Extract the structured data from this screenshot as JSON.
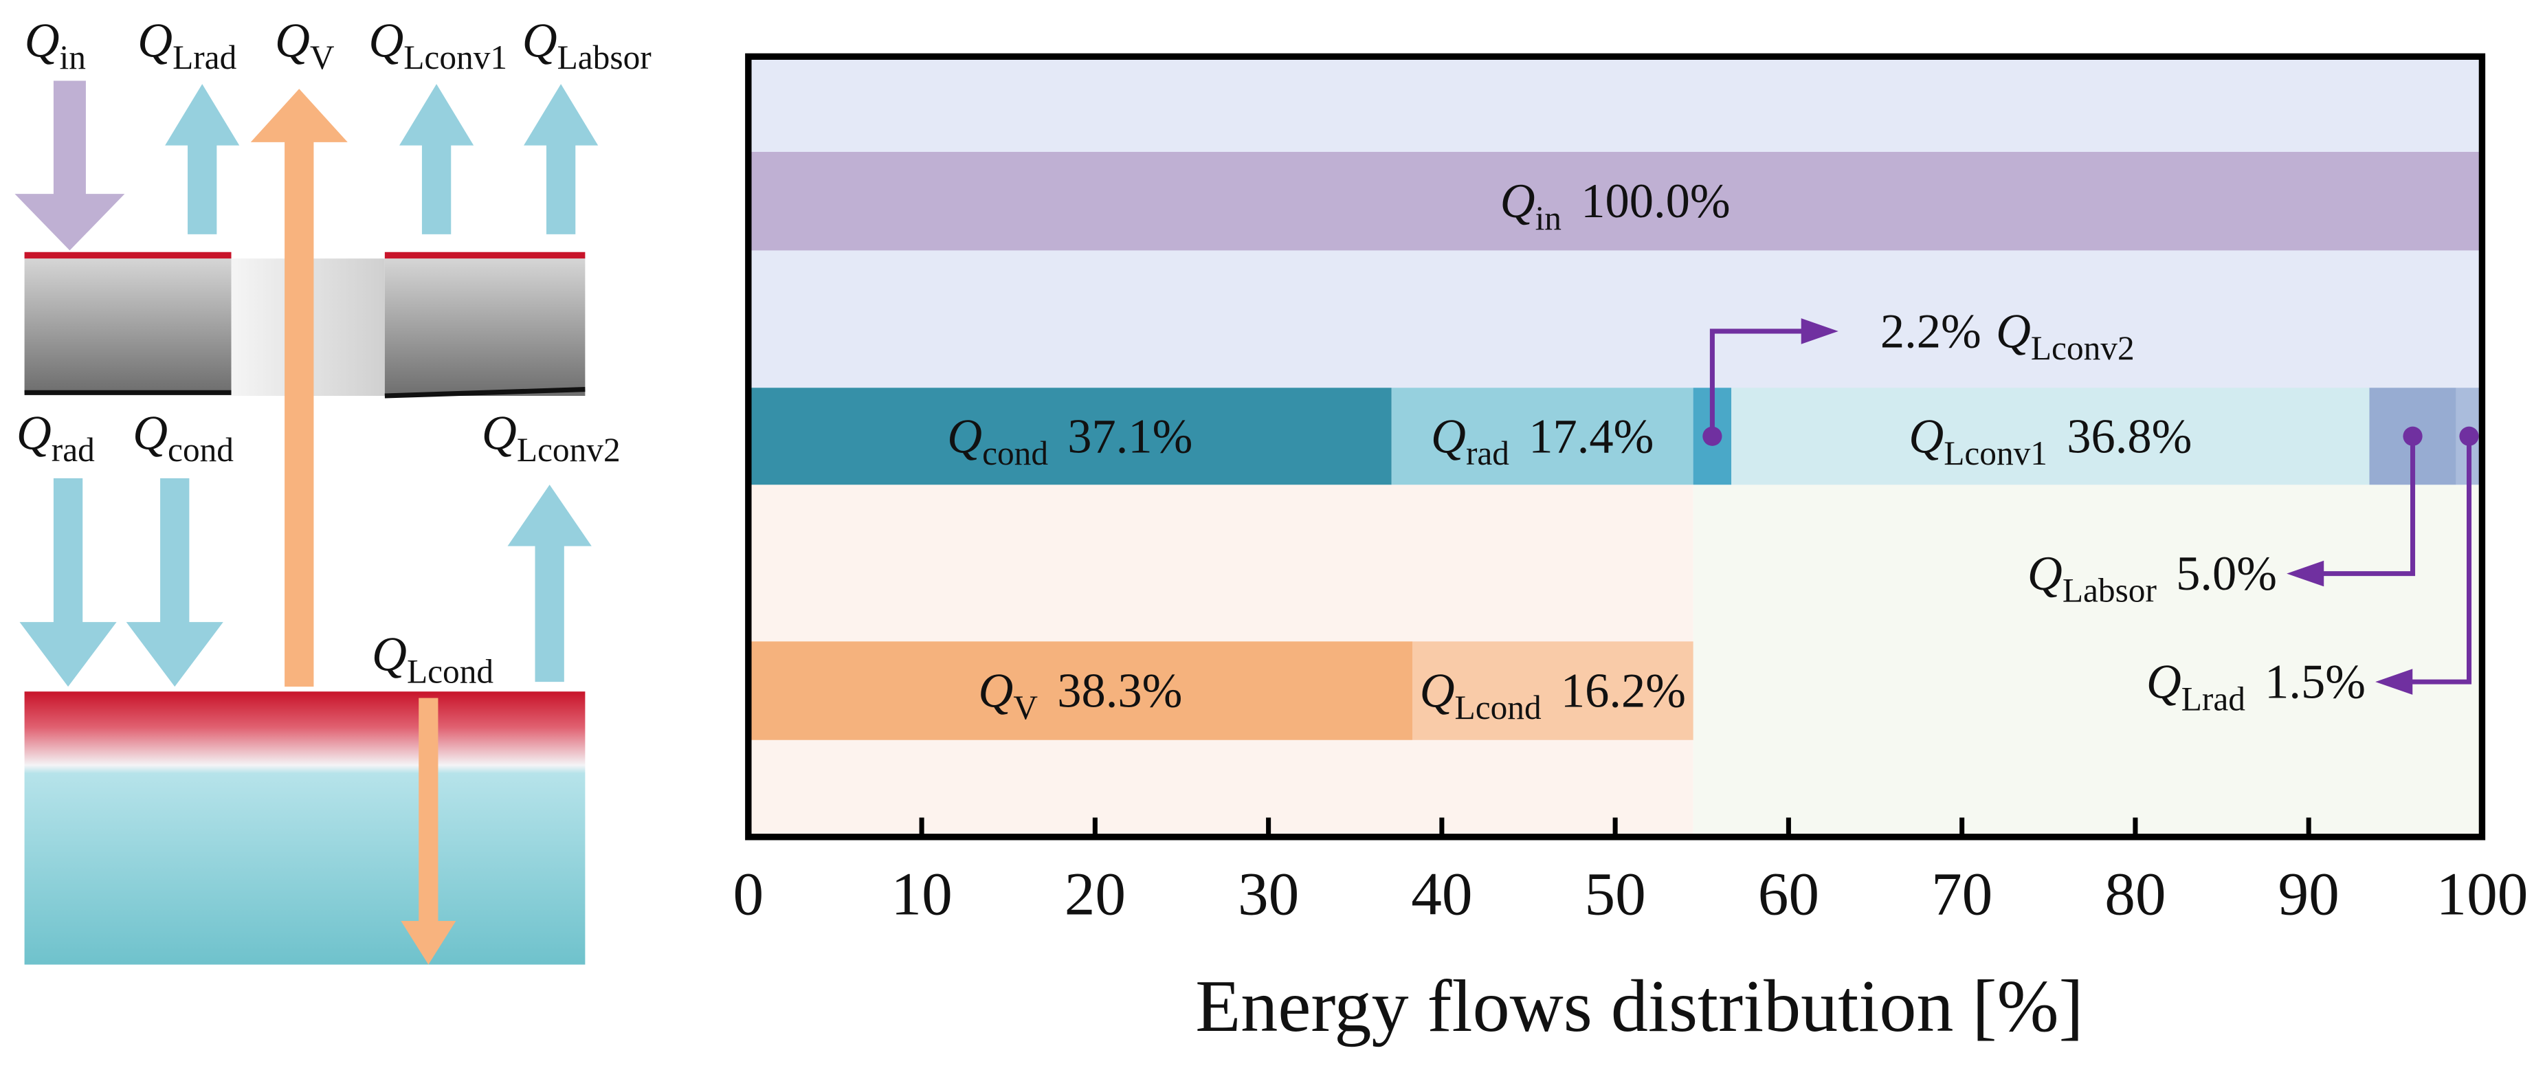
{
  "diagram": {
    "labels": [
      {
        "main": "Q",
        "sub": "in"
      },
      {
        "main": "Q",
        "sub": "Lrad"
      },
      {
        "main": "Q",
        "sub": "V"
      },
      {
        "main": "Q",
        "sub": "Lconv1"
      },
      {
        "main": "Q",
        "sub": "Labsor"
      },
      {
        "main": "Q",
        "sub": "rad"
      },
      {
        "main": "Q",
        "sub": "cond"
      },
      {
        "main": "Q",
        "sub": "Lconv2"
      },
      {
        "main": "Q",
        "sub": "Lcond"
      }
    ]
  },
  "chart_data": {
    "type": "bar",
    "orientation": "horizontal",
    "stacked": true,
    "xlabel": "Energy flows distribution [%]",
    "xlim": [
      0,
      100
    ],
    "xticks": [
      0,
      10,
      20,
      30,
      40,
      50,
      60,
      70,
      80,
      90,
      100
    ],
    "categories": [
      null,
      null,
      null
    ],
    "series": [
      {
        "name": "Q",
        "sub": "in",
        "color": "#bfb0d3",
        "values": [
          100,
          null,
          null
        ],
        "value_labels": [
          "100.0%",
          null,
          null
        ]
      },
      {
        "name": "Q",
        "sub": "cond",
        "color": "#3690a8",
        "values": [
          null,
          37.1,
          null
        ],
        "value_labels": [
          null,
          "37.1%",
          null
        ]
      },
      {
        "name": "Q",
        "sub": "rad",
        "color": "#96d0de",
        "values": [
          null,
          17.4,
          null
        ],
        "value_labels": [
          null,
          "17.4%",
          null
        ]
      },
      {
        "name": "Q",
        "sub": "Lconv2",
        "color": "#4aa8c8",
        "values": [
          null,
          2.2,
          null
        ],
        "value_labels": [
          null,
          "2.2%",
          null
        ]
      },
      {
        "name": "Q",
        "sub": "Lconv1",
        "color": "#d2ebf0",
        "values": [
          null,
          36.8,
          null
        ],
        "value_labels": [
          null,
          "36.8%",
          null
        ]
      },
      {
        "name": "Q",
        "sub": "Labsor",
        "color": "#97acd2",
        "values": [
          null,
          5.0,
          null
        ],
        "value_labels": [
          null,
          "5.0%",
          null
        ]
      },
      {
        "name": "Q",
        "sub": "Lrad",
        "color": "#aabcdc",
        "values": [
          null,
          1.5,
          null
        ],
        "value_labels": [
          null,
          "1.5%",
          null
        ]
      },
      {
        "name": "Q",
        "sub": "V",
        "color": "#f5b27d",
        "values": [
          null,
          null,
          38.3
        ],
        "value_labels": [
          null,
          null,
          "38.3%"
        ]
      },
      {
        "name": "Q",
        "sub": "Lcond",
        "color": "#f9cba8",
        "values": [
          null,
          null,
          16.2
        ],
        "value_labels": [
          null,
          null,
          "16.2%"
        ]
      }
    ]
  }
}
